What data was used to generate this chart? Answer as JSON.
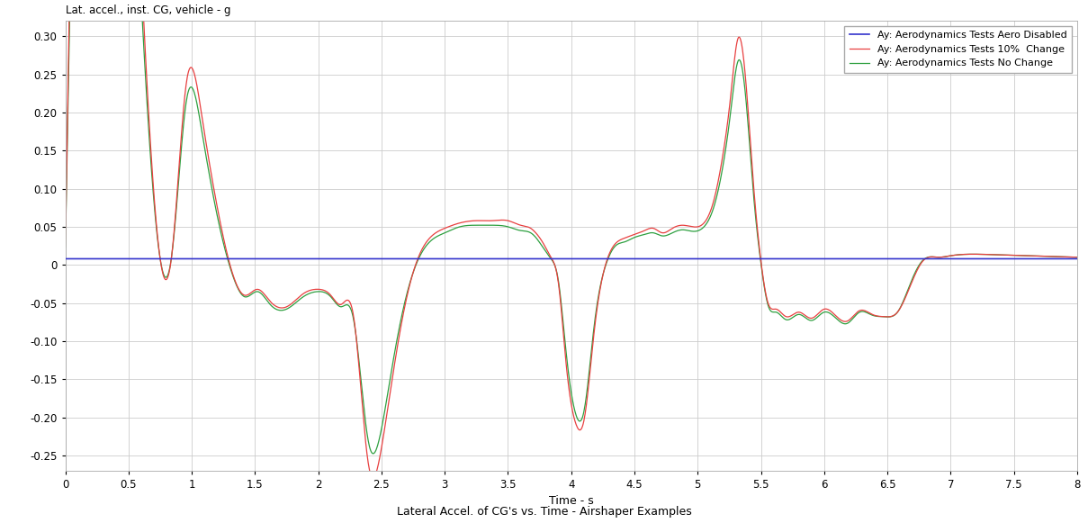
{
  "title_ylabel": "Lat. accel., inst. CG, vehicle - g",
  "xlabel": "Time - s",
  "subtitle": "Lateral Accel. of CG's vs. Time - Airshaper Examples",
  "legend": [
    "Ay: Aerodynamics Tests Aero Disabled",
    "Ay: Aerodynamics Tests 10%  Change",
    "Ay: Aerodynamics Tests No Change"
  ],
  "colors": [
    "#3333cc",
    "#e84040",
    "#2ea040"
  ],
  "xlim": [
    0,
    8.0
  ],
  "ylim": [
    -0.27,
    0.32
  ],
  "yticks": [
    -0.25,
    -0.2,
    -0.15,
    -0.1,
    -0.05,
    0,
    0.05,
    0.1,
    0.15,
    0.2,
    0.25,
    0.3
  ],
  "xticks": [
    0,
    0.5,
    1.0,
    1.5,
    2.0,
    2.5,
    3.0,
    3.5,
    4.0,
    4.5,
    5.0,
    5.5,
    6.0,
    6.5,
    7.0,
    7.5,
    8.0
  ],
  "grid_color": "#cccccc",
  "bg_color": "#ffffff",
  "linewidth": 0.9
}
